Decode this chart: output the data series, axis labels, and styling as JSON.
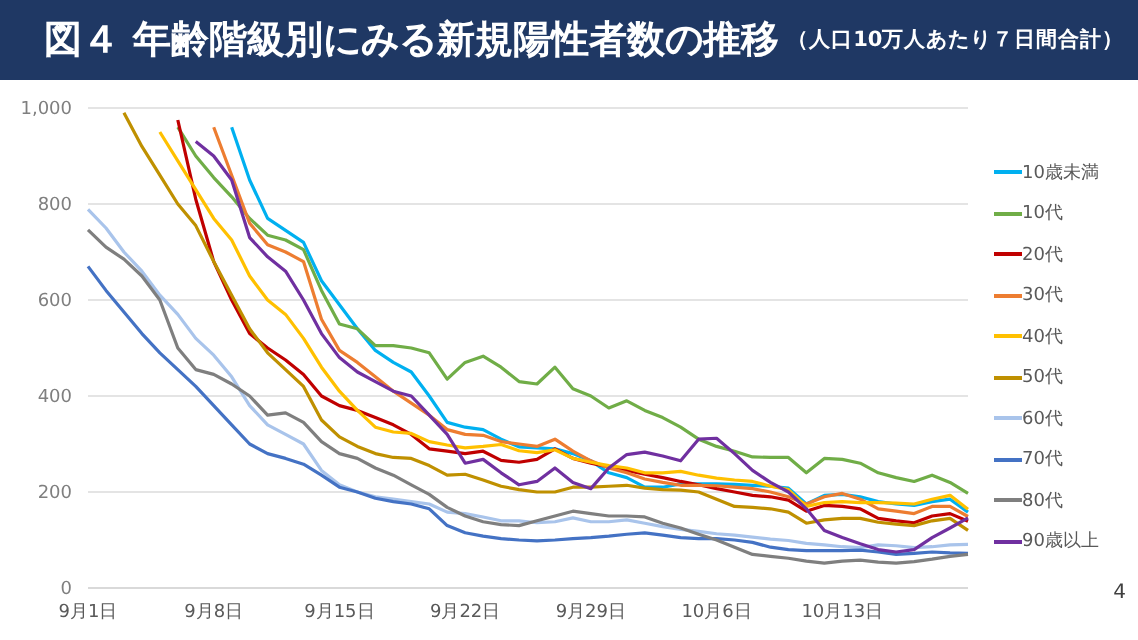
{
  "chart_data": {
    "type": "line",
    "title": "図４ 年齢階級別にみる新規陽性者数の推移",
    "subtitle": "（人口10万人あたり７日間合計）",
    "annotations": [
      "4"
    ],
    "categories": [
      "9月1日",
      null,
      null,
      null,
      null,
      null,
      null,
      "9月8日",
      null,
      null,
      null,
      null,
      null,
      null,
      "9月15日",
      null,
      null,
      null,
      null,
      null,
      null,
      "9月22日",
      null,
      null,
      null,
      null,
      null,
      null,
      "9月29日",
      null,
      null,
      null,
      null,
      null,
      null,
      "10月6日",
      null,
      null,
      null,
      null,
      null,
      null,
      "10月13日",
      null,
      null,
      null,
      null,
      null,
      null,
      null
    ],
    "ylim": [
      0,
      1000
    ],
    "yticks": [
      0,
      200,
      400,
      600,
      800,
      {
        "value": 1000,
        "label": "1,000"
      }
    ],
    "grid": "y",
    "legend": "right",
    "marker": "none",
    "line_style": "solid",
    "series": [
      {
        "name": "10歳未満",
        "color": "#00b0f0",
        "values": [
          null,
          null,
          null,
          null,
          null,
          null,
          null,
          null,
          960,
          850,
          770,
          745,
          720,
          640,
          590,
          540,
          495,
          470,
          450,
          400,
          345,
          335,
          330,
          310,
          294,
          292,
          290,
          280,
          265,
          240,
          230,
          210,
          210,
          217,
          217,
          217,
          216,
          214,
          212,
          208,
          175,
          193,
          195,
          190,
          180,
          175,
          172,
          180,
          185,
          158
        ]
      },
      {
        "name": "10代",
        "color": "#70ad47",
        "values": [
          null,
          null,
          null,
          null,
          null,
          960,
          900,
          855,
          815,
          770,
          735,
          725,
          705,
          620,
          550,
          540,
          505,
          505,
          500,
          490,
          435,
          470,
          483,
          460,
          430,
          425,
          460,
          415,
          400,
          375,
          390,
          370,
          355,
          335,
          310,
          295,
          285,
          273,
          272,
          272,
          240,
          270,
          268,
          260,
          240,
          230,
          222,
          235,
          220,
          197
        ]
      },
      {
        "name": "20代",
        "color": "#c00000",
        "values": [
          null,
          null,
          null,
          null,
          null,
          975,
          810,
          680,
          600,
          530,
          500,
          475,
          445,
          400,
          380,
          370,
          355,
          340,
          320,
          290,
          285,
          280,
          285,
          266,
          262,
          268,
          290,
          270,
          260,
          252,
          245,
          237,
          230,
          222,
          215,
          207,
          200,
          193,
          190,
          183,
          160,
          172,
          170,
          165,
          145,
          140,
          136,
          150,
          155,
          139
        ]
      },
      {
        "name": "30代",
        "color": "#ed7d31",
        "values": [
          null,
          null,
          null,
          null,
          null,
          null,
          null,
          960,
          860,
          760,
          715,
          700,
          680,
          560,
          495,
          470,
          440,
          410,
          385,
          360,
          330,
          320,
          318,
          305,
          300,
          295,
          310,
          285,
          265,
          250,
          240,
          227,
          220,
          214,
          214,
          213,
          210,
          207,
          200,
          190,
          175,
          190,
          197,
          185,
          165,
          160,
          155,
          170,
          170,
          149
        ]
      },
      {
        "name": "40代",
        "color": "#ffc000",
        "values": [
          null,
          null,
          null,
          null,
          950,
          890,
          830,
          770,
          725,
          650,
          600,
          570,
          520,
          460,
          410,
          370,
          335,
          325,
          322,
          305,
          298,
          292,
          295,
          299,
          286,
          282,
          288,
          270,
          262,
          255,
          250,
          240,
          240,
          243,
          235,
          229,
          225,
          222,
          212,
          205,
          170,
          178,
          180,
          178,
          178,
          177,
          175,
          185,
          193,
          164
        ]
      },
      {
        "name": "50代",
        "color": "#bf9000",
        "values": [
          null,
          null,
          990,
          920,
          860,
          800,
          755,
          680,
          610,
          540,
          490,
          455,
          420,
          350,
          315,
          295,
          280,
          272,
          270,
          255,
          235,
          237,
          225,
          212,
          205,
          200,
          200,
          210,
          210,
          212,
          214,
          208,
          205,
          204,
          200,
          185,
          170,
          168,
          165,
          158,
          135,
          142,
          145,
          145,
          137,
          133,
          130,
          140,
          145,
          120
        ]
      },
      {
        "name": "60代",
        "color": "#a9c4eb",
        "values": [
          789,
          750,
          700,
          660,
          610,
          570,
          520,
          485,
          440,
          380,
          340,
          320,
          300,
          245,
          215,
          200,
          190,
          185,
          180,
          175,
          158,
          155,
          148,
          140,
          140,
          136,
          138,
          146,
          138,
          138,
          142,
          135,
          128,
          122,
          118,
          113,
          110,
          106,
          102,
          99,
          93,
          90,
          86,
          84,
          90,
          88,
          84,
          86,
          90,
          91
        ]
      },
      {
        "name": "70代",
        "color": "#4472c4",
        "values": [
          670,
          620,
          575,
          530,
          490,
          455,
          420,
          380,
          340,
          300,
          280,
          270,
          258,
          235,
          210,
          200,
          187,
          180,
          175,
          165,
          130,
          115,
          108,
          103,
          100,
          98,
          100,
          103,
          105,
          108,
          112,
          115,
          110,
          105,
          103,
          103,
          100,
          95,
          85,
          80,
          78,
          78,
          78,
          79,
          75,
          70,
          72,
          75,
          73,
          72
        ]
      },
      {
        "name": "80代",
        "color": "#7f7f7f",
        "values": [
          746,
          710,
          685,
          650,
          600,
          500,
          455,
          445,
          425,
          400,
          360,
          365,
          345,
          305,
          280,
          270,
          250,
          235,
          215,
          195,
          168,
          150,
          138,
          132,
          130,
          140,
          150,
          160,
          155,
          150,
          150,
          148,
          135,
          125,
          112,
          100,
          85,
          70,
          66,
          62,
          56,
          52,
          56,
          58,
          54,
          52,
          55,
          60,
          66,
          70
        ]
      },
      {
        "name": "90歳以上",
        "color": "#7030a0",
        "values": [
          null,
          null,
          null,
          null,
          null,
          null,
          930,
          900,
          850,
          730,
          690,
          660,
          600,
          530,
          480,
          450,
          430,
          410,
          400,
          360,
          320,
          260,
          268,
          240,
          215,
          222,
          250,
          220,
          207,
          250,
          278,
          283,
          275,
          265,
          310,
          312,
          280,
          245,
          220,
          200,
          165,
          120,
          105,
          92,
          80,
          75,
          80,
          105,
          125,
          146
        ]
      }
    ]
  }
}
